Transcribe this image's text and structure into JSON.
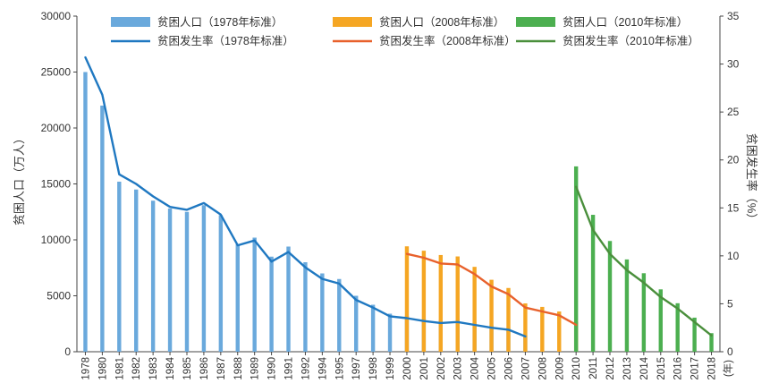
{
  "chart_data": {
    "type": "bar",
    "title": "",
    "y_left_label": "贫困人口（万人）",
    "y_right_label": "贫困发生率（%）",
    "x_unit_label": "(年)",
    "y_left_lim": [
      0,
      30000
    ],
    "y_right_lim": [
      0,
      35
    ],
    "y_left_ticks": [
      0,
      5000,
      10000,
      15000,
      20000,
      25000,
      30000
    ],
    "y_right_ticks": [
      0,
      5,
      10,
      15,
      20,
      25,
      30,
      35
    ],
    "y_left_tick_labels": [
      "0",
      "5000",
      "10000",
      "15000",
      "20000",
      "25000",
      "30000"
    ],
    "y_right_tick_labels": [
      "0",
      "5",
      "10",
      "15",
      "20",
      "25",
      "30",
      "35"
    ],
    "grid": false,
    "legend_position": "top",
    "categories": [
      "1978",
      "1980",
      "1981",
      "1982",
      "1983",
      "1984",
      "1985",
      "1986",
      "1987",
      "1988",
      "1989",
      "1990",
      "1991",
      "1992",
      "1994",
      "1995",
      "1997",
      "1998",
      "1999",
      "2000",
      "2001",
      "2002",
      "2003",
      "2004",
      "2005",
      "2006",
      "2007",
      "2008",
      "2009",
      "2010",
      "2011",
      "2012",
      "2013",
      "2014",
      "2015",
      "2016",
      "2017",
      "2018"
    ],
    "bar_series": [
      {
        "name": "贫困人口（1978年标准）",
        "color": "#6aa9dc",
        "start": "1978",
        "values": [
          25000,
          22000,
          15200,
          14500,
          13500,
          12800,
          12500,
          13100,
          12200,
          9600,
          10200,
          8500,
          9400,
          8000,
          7000,
          6500,
          5000,
          4200,
          3400,
          3209,
          2927,
          2820,
          2900,
          2610,
          2365,
          2148,
          1479
        ]
      },
      {
        "name": "贫困人口（2008年标准）",
        "color": "#f5a623",
        "start": "2000",
        "values": [
          9422,
          9029,
          8645,
          8517,
          7587,
          6432,
          5698,
          4320,
          4007,
          3597,
          2688
        ]
      },
      {
        "name": "贫困人口（2010年标准）",
        "color": "#4caf50",
        "start": "2010",
        "values": [
          16567,
          12238,
          9899,
          8249,
          7017,
          5575,
          4335,
          3046,
          1660
        ]
      }
    ],
    "line_series": [
      {
        "name": "贫困发生率（1978年标准）",
        "color": "#1f78c1",
        "start": "1978",
        "values": [
          30.7,
          26.8,
          18.5,
          17.5,
          16.2,
          15.1,
          14.8,
          15.5,
          14.3,
          11.1,
          11.6,
          9.4,
          10.4,
          8.8,
          7.6,
          7.1,
          5.4,
          4.6,
          3.7,
          3.5,
          3.2,
          3.0,
          3.1,
          2.8,
          2.5,
          2.3,
          1.6
        ]
      },
      {
        "name": "贫困发生率（2008年标准）",
        "color": "#e8612c",
        "start": "2000",
        "values": [
          10.2,
          9.8,
          9.2,
          9.1,
          8.1,
          6.8,
          6.0,
          4.6,
          4.2,
          3.8,
          2.8
        ]
      },
      {
        "name": "贫困发生率（2010年标准）",
        "color": "#4a8f3c",
        "start": "2010",
        "values": [
          17.2,
          12.7,
          10.2,
          8.5,
          7.2,
          5.7,
          4.5,
          3.1,
          1.7
        ]
      }
    ]
  }
}
